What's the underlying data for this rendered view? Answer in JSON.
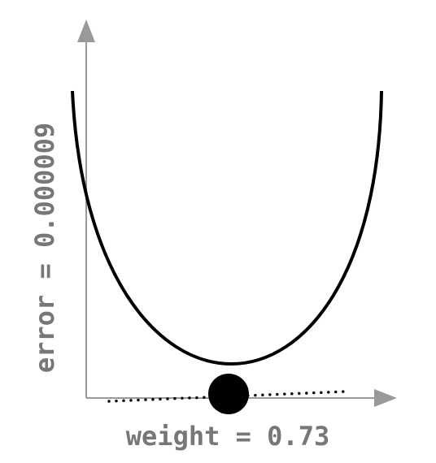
{
  "labels": {
    "x_axis": "weight = 0.73",
    "y_axis": "error = 0.000009"
  },
  "state": {
    "weight": 0.73,
    "error": 9e-06
  },
  "colors": {
    "axis": "#999999",
    "label": "#777777",
    "curve": "#000000",
    "ball": "#000000",
    "tangent": "#000000"
  }
}
